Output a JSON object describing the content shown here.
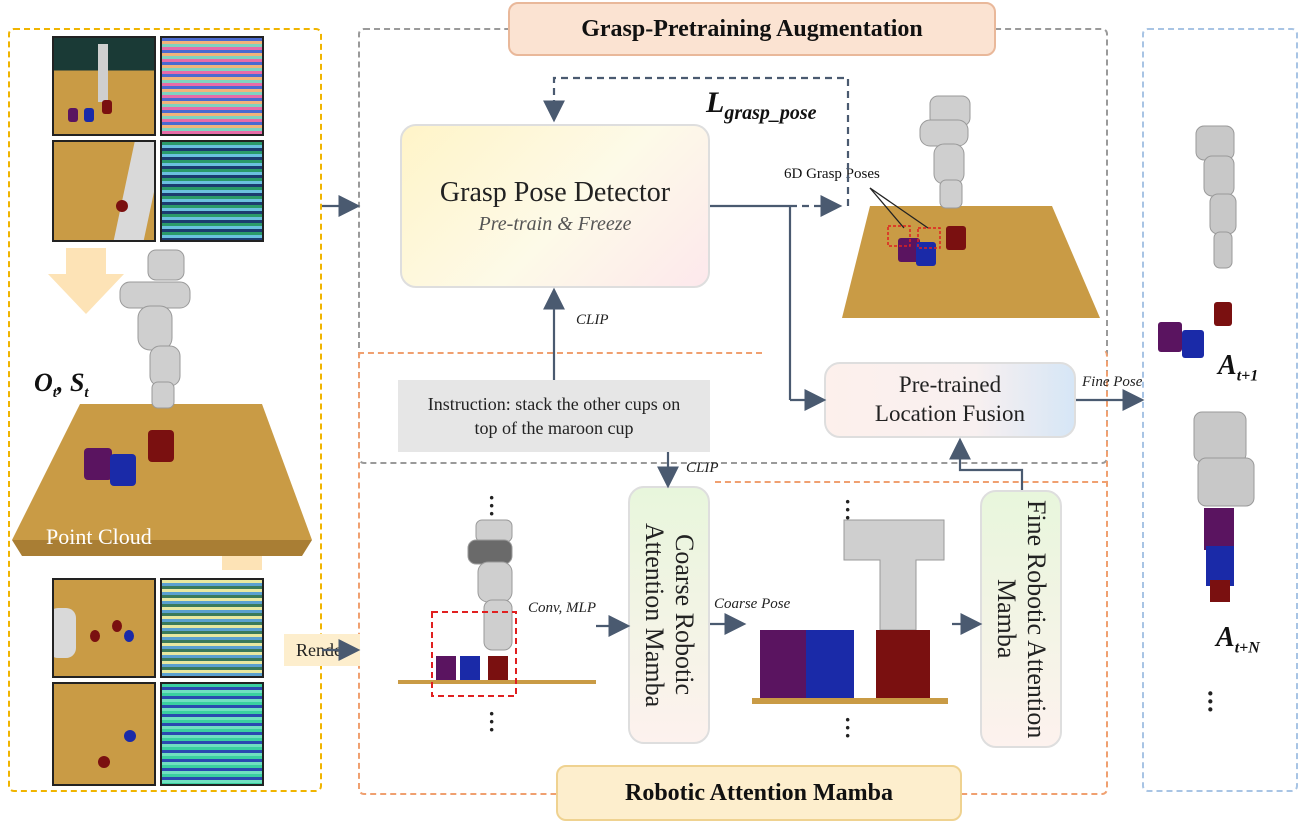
{
  "titles": {
    "grasp": "Grasp-Pretraining Augmentation",
    "ram": "Robotic Attention Mamba"
  },
  "left_panel": {
    "obs_label": "O",
    "obs_sub": "t",
    "state_label": "S",
    "state_sub": "t",
    "point_cloud": "Point Cloud"
  },
  "render": "Render",
  "grasp_detector": {
    "title": "Grasp Pose Detector",
    "subtitle": "Pre-train & Freeze"
  },
  "loss": {
    "main": "L",
    "sub": "grasp_pose"
  },
  "grasp_poses_label": "6D Grasp Poses",
  "clip_upper": "CLIP",
  "clip_lower": "CLIP",
  "instruction": "Instruction: stack the other cups on top of the maroon cup",
  "conv_mlp": "Conv, MLP",
  "coarse_module": "Coarse Robotic Attention Mamba",
  "coarse_pose": "Coarse Pose",
  "fine_module": "Fine Robotic Attention Mamba",
  "fusion": "Pre-trained Location Fusion",
  "fine_pose": "Fine Pose",
  "actions": {
    "a1_main": "A",
    "a1_sub": "t+1",
    "an_main": "A",
    "an_sub": "t+N"
  },
  "colors": {
    "yellow_dash": "#f0b400",
    "gray_dash": "#9a9a9a",
    "orange_dash": "#f0a070",
    "blue_dash": "#a8c4e4",
    "arrow": "#4a5a70",
    "table": "#c99b45",
    "purple_cup": "#5a1460",
    "blue_cup": "#1a2aa8",
    "maroon_cup": "#7a1010"
  }
}
